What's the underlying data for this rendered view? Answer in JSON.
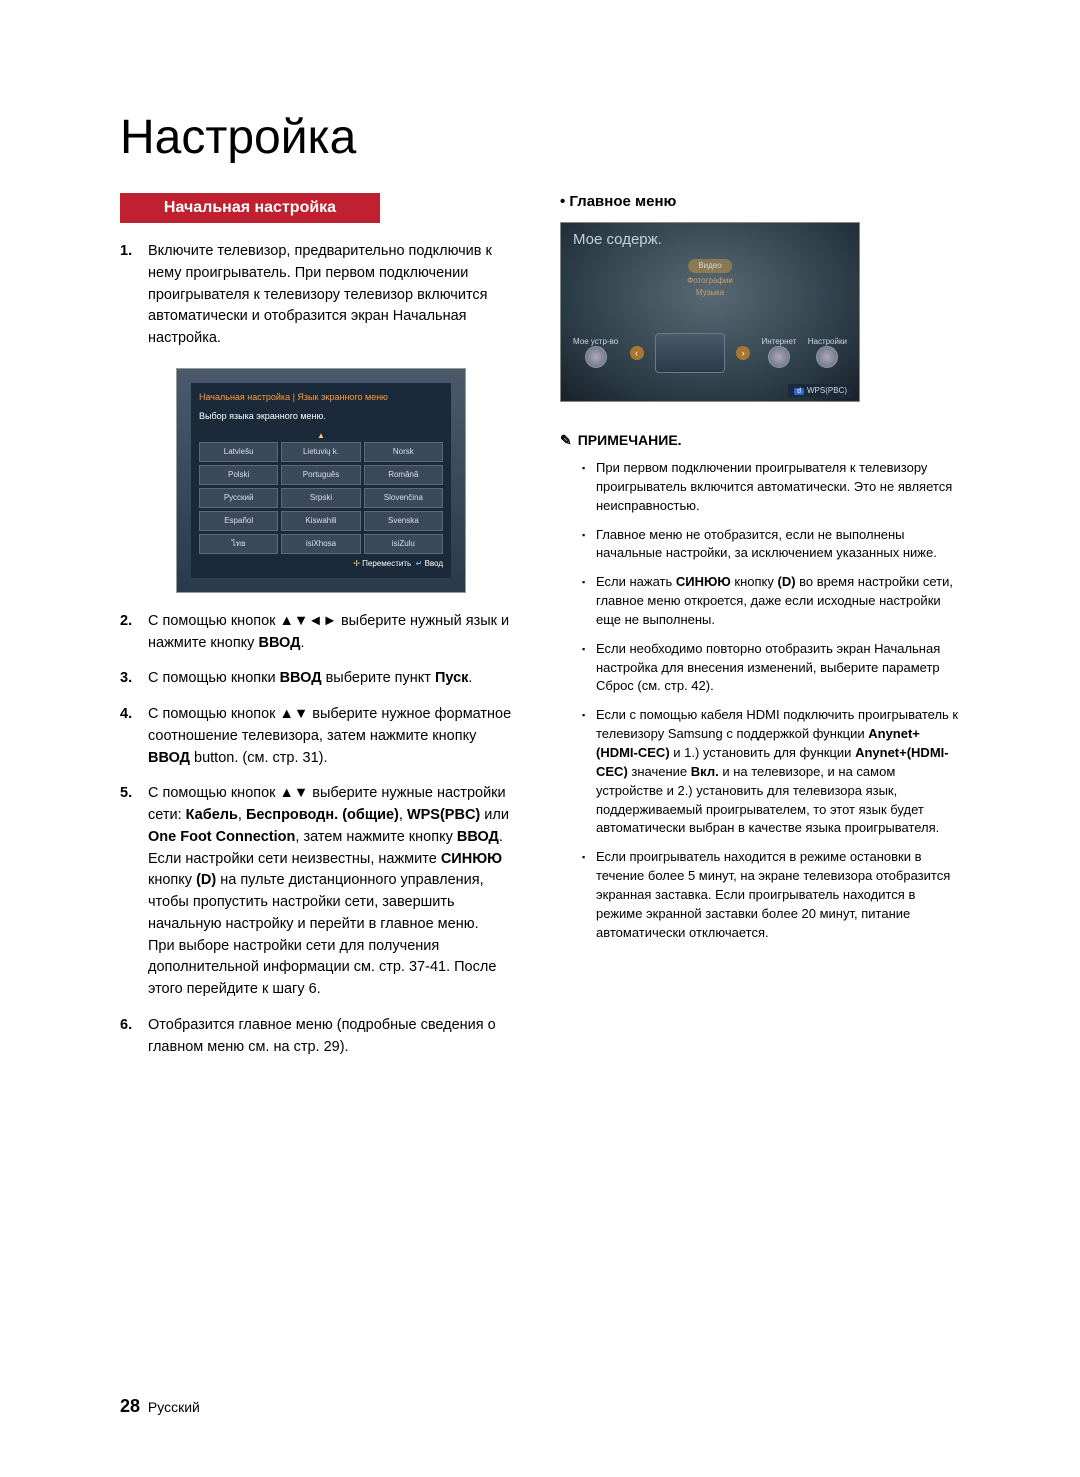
{
  "page": {
    "title": "Настройка",
    "number": "28",
    "lang": "Русский"
  },
  "section_header": "Начальная настройка",
  "steps": {
    "s1": "Включите телевизор, предварительно подключив к нему проигрыватель. При первом подключении проигрывателя к телевизору телевизор включится автоматически и отобразится экран Начальная настройка.",
    "s2_a": "С помощью кнопок ",
    "s2_arrows": "▲▼◄►",
    "s2_b": " выберите нужный язык и нажмите кнопку ",
    "s2_bold": "ВВОД",
    "s2_end": ".",
    "s3_a": "С помощью кнопки ",
    "s3_bold1": "ВВОД",
    "s3_b": " выберите пункт ",
    "s3_bold2": "Пуск",
    "s3_end": ".",
    "s4_a": "С помощью кнопок ",
    "s4_arrows": "▲▼",
    "s4_b": " выберите нужное форматное соотношение телевизора, затем нажмите кнопку ",
    "s4_bold": "ВВОД",
    "s4_c": " button. (см. стр. 31).",
    "s5_a": "С помощью кнопок ",
    "s5_arrows": "▲▼",
    "s5_b": " выберите нужные настройки сети: ",
    "s5_bold1": "Кабель",
    "s5_sep1": ", ",
    "s5_bold2": "Беспроводн. (общие)",
    "s5_sep2": ", ",
    "s5_bold3": "WPS(PBC)",
    "s5_or": " или ",
    "s5_bold4": "One Foot Connection",
    "s5_c": ", затем нажмите кнопку ",
    "s5_bold5": "ВВОД",
    "s5_d": ". Если настройки сети неизвестны, нажмите ",
    "s5_bold6": "СИНЮЮ",
    "s5_e": " кнопку ",
    "s5_bold7": "(D)",
    "s5_f": " на пульте дистанционного управления, чтобы пропустить настройки сети, завершить начальную настройку и перейти в главное меню.",
    "s5_g": "При выборе настройки сети для получения дополнительной информации см. стр. 37-41. После этого перейдите к шагу 6.",
    "s6": "Отобразится главное меню (подробные сведения о главном меню см. на стр. 29)."
  },
  "osd": {
    "title": "Начальная настройка | Язык экранного меню",
    "sub": "Выбор языка экранного меню.",
    "langs": [
      "Latviešu",
      "Lietuvių k.",
      "Norsk",
      "Polski",
      "Português",
      "Română",
      "Русский",
      "Srpski",
      "Slovenčina",
      "Español",
      "Kiswahili",
      "Svenska",
      "ไทย",
      "isiXhosa",
      "isiZulu"
    ],
    "footer_move": "Переместить",
    "footer_enter": "Ввод"
  },
  "main_menu_label": "Главное меню",
  "home": {
    "title": "Мое содерж.",
    "cat1": "Видео",
    "cat2": "Фотографии",
    "cat3": "Музыка",
    "left": "Мое устр-во",
    "right1": "Интернет",
    "right2": "Настройки",
    "wps": "WPS(PBC)"
  },
  "note_header": "ПРИМЕЧАНИЕ.",
  "notes": {
    "n1": "При первом подключении проигрывателя к телевизору проигрыватель включится автоматически. Это не является неисправностью.",
    "n2": "Главное меню не отобразится, если не выполнены начальные настройки, за исключением указанных ниже.",
    "n3_a": "Если нажать ",
    "n3_b1": "СИНЮЮ",
    "n3_b": " кнопку ",
    "n3_b2": "(D)",
    "n3_c": " во время настройки сети, главное меню откроется, даже если исходные настройки еще не выполнены.",
    "n4": "Если необходимо повторно отобразить экран Начальная настройка для внесения изменений, выберите параметр Сброс (см. стр. 42).",
    "n5_a": "Если с помощью кабеля HDMI подключить проигрыватель к телевизору Samsung с поддержкой функции ",
    "n5_b1": "Anynet+(HDMI-CEC)",
    "n5_b": " и 1.) установить для функции ",
    "n5_b2": "Anynet+(HDMI-CEC)",
    "n5_c": " значение ",
    "n5_b3": "Вкл.",
    "n5_d": " и на телевизоре, и на самом устройстве и 2.) установить для телевизора язык, поддерживаемый проигрывателем, то этот язык будет автоматически выбран в качестве языка проигрывателя.",
    "n6": "Если проигрыватель находится в режиме остановки в течение более 5 минут, на экране телевизора отобразится экранная заставка. Если проигрыватель находится в режиме экранной заставки более 20 минут, питание автоматически отключается."
  }
}
